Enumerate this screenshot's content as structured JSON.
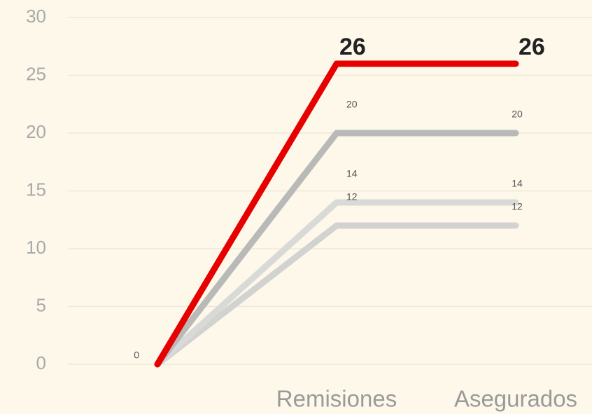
{
  "chart_data": {
    "type": "line",
    "categories": [
      null,
      "Remisiones",
      "Asegurados"
    ],
    "series": [
      {
        "color": "#e60000",
        "values": [
          0,
          26,
          26
        ],
        "value_labels": [
          "0",
          "26",
          "26"
        ],
        "label_size": 34,
        "label_bold": true
      },
      {
        "color": "#b9b9b7",
        "values": [
          0,
          20,
          20
        ],
        "value_labels": [
          null,
          "20",
          "20"
        ],
        "label_size": 14,
        "label_bold": false
      },
      {
        "color": "#d9d9d7",
        "values": [
          0,
          14,
          14
        ],
        "value_labels": [
          null,
          "14",
          "14"
        ],
        "label_size": 14,
        "label_bold": false
      },
      {
        "color": "#d2d2d0",
        "values": [
          0,
          12,
          12
        ],
        "value_labels": [
          null,
          "12",
          "12"
        ],
        "label_size": 14,
        "label_bold": false
      }
    ],
    "ylim": [
      0,
      30
    ],
    "yticks": [
      0,
      5,
      10,
      15,
      20,
      25,
      30
    ],
    "grid": true
  }
}
